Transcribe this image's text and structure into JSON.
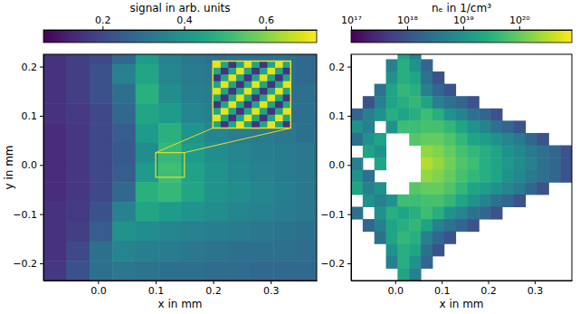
{
  "chart_data": [
    {
      "type": "heatmap",
      "xlabel": "x in mm",
      "ylabel": "y in mm",
      "xlim": [
        -0.095,
        0.38
      ],
      "ylim": [
        -0.235,
        0.225
      ],
      "xticks": [
        {
          "value": 0,
          "label": "0.0"
        },
        0.1,
        0.2,
        0.3
      ],
      "yticks": [
        {
          "value": -0.2,
          "label": "−0.2"
        },
        {
          "value": -0.1,
          "label": "−0.1"
        },
        {
          "value": 0,
          "label": "0.0"
        },
        0.1,
        0.2
      ],
      "colorbar": {
        "label": "signal in arb. units",
        "range": [
          0.055,
          0.725
        ],
        "ticks": [
          0.2,
          0.4,
          0.6
        ]
      },
      "x_edges": [
        -0.095,
        -0.055,
        -0.015,
        0.025,
        0.065,
        0.105,
        0.145,
        0.185,
        0.225,
        0.265,
        0.305,
        0.345,
        0.385
      ],
      "y_edges": [
        0.245,
        0.205,
        0.165,
        0.125,
        0.085,
        0.045,
        0.005,
        -0.035,
        -0.075,
        -0.115,
        -0.155,
        -0.195,
        -0.235
      ],
      "z": [
        [
          0.15,
          0.18,
          0.2,
          0.28,
          0.42,
          0.35,
          0.32,
          0.3,
          0.3,
          0.3,
          0.3,
          0.28
        ],
        [
          0.15,
          0.18,
          0.22,
          0.35,
          0.45,
          0.36,
          0.33,
          0.32,
          0.3,
          0.3,
          0.3,
          0.28
        ],
        [
          0.15,
          0.18,
          0.22,
          0.3,
          0.48,
          0.38,
          0.34,
          0.33,
          0.32,
          0.3,
          0.3,
          0.3
        ],
        [
          0.15,
          0.17,
          0.2,
          0.28,
          0.45,
          0.42,
          0.36,
          0.34,
          0.33,
          0.32,
          0.3,
          0.3
        ],
        [
          0.14,
          0.16,
          0.2,
          0.25,
          0.42,
          0.48,
          0.4,
          0.36,
          0.34,
          0.33,
          0.32,
          0.3
        ],
        [
          0.14,
          0.16,
          0.2,
          0.24,
          0.38,
          0.5,
          0.42,
          0.38,
          0.36,
          0.34,
          0.33,
          0.32
        ],
        [
          0.14,
          0.16,
          0.2,
          0.25,
          0.42,
          0.52,
          0.44,
          0.4,
          0.37,
          0.35,
          0.33,
          0.32
        ],
        [
          0.14,
          0.16,
          0.2,
          0.28,
          0.48,
          0.5,
          0.45,
          0.4,
          0.38,
          0.36,
          0.34,
          0.32
        ],
        [
          0.15,
          0.17,
          0.22,
          0.35,
          0.45,
          0.42,
          0.4,
          0.38,
          0.36,
          0.35,
          0.33,
          0.32
        ],
        [
          0.15,
          0.18,
          0.25,
          0.4,
          0.38,
          0.36,
          0.35,
          0.34,
          0.33,
          0.32,
          0.31,
          0.3
        ],
        [
          0.15,
          0.2,
          0.3,
          0.36,
          0.34,
          0.33,
          0.32,
          0.31,
          0.3,
          0.3,
          0.3,
          0.29
        ],
        [
          0.16,
          0.22,
          0.3,
          0.32,
          0.31,
          0.3,
          0.3,
          0.29,
          0.29,
          0.28,
          0.28,
          0.28
        ]
      ],
      "inset": {
        "x_edges": [
          0.1,
          0.105,
          0.11,
          0.115,
          0.12,
          0.125,
          0.13,
          0.135,
          0.14,
          0.145,
          0.15
        ],
        "y_edges": [
          0.025,
          0.02,
          0.015,
          0.01,
          0.005,
          0,
          -0.005,
          -0.01,
          -0.015,
          -0.02,
          -0.025
        ],
        "z": [
          [
            0.7,
            0.45,
            0.15,
            0.45,
            0.7,
            0.45,
            0.15,
            0.45,
            0.7,
            0.45
          ],
          [
            0.45,
            0.15,
            0.45,
            0.7,
            0.45,
            0.15,
            0.45,
            0.7,
            0.45,
            0.15
          ],
          [
            0.15,
            0.45,
            0.7,
            0.45,
            0.15,
            0.45,
            0.7,
            0.45,
            0.15,
            0.45
          ],
          [
            0.45,
            0.7,
            0.45,
            0.15,
            0.45,
            0.7,
            0.45,
            0.15,
            0.45,
            0.7
          ],
          [
            0.7,
            0.45,
            0.15,
            0.45,
            0.7,
            0.45,
            0.15,
            0.45,
            0.7,
            0.45
          ],
          [
            0.45,
            0.15,
            0.45,
            0.7,
            0.45,
            0.15,
            0.45,
            0.7,
            0.45,
            0.15
          ],
          [
            0.15,
            0.45,
            0.7,
            0.45,
            0.15,
            0.45,
            0.7,
            0.45,
            0.15,
            0.45
          ],
          [
            0.45,
            0.7,
            0.45,
            0.15,
            0.45,
            0.7,
            0.45,
            0.15,
            0.45,
            0.7
          ],
          [
            0.7,
            0.45,
            0.15,
            0.45,
            0.7,
            0.45,
            0.15,
            0.45,
            0.7,
            0.45
          ],
          [
            0.45,
            0.15,
            0.45,
            0.7,
            0.45,
            0.15,
            0.45,
            0.7,
            0.45,
            0.15
          ]
        ]
      }
    },
    {
      "type": "heatmap",
      "xlabel": "x in mm",
      "xlim": [
        -0.095,
        0.38
      ],
      "ylim": [
        -0.235,
        0.225
      ],
      "xticks": [
        {
          "value": 0,
          "label": "0.0"
        },
        0.1,
        0.2,
        0.3
      ],
      "yticks": [
        {
          "value": -0.2,
          "label": "−0.2"
        },
        {
          "value": -0.1,
          "label": "−0.1"
        },
        {
          "value": 0,
          "label": "0.0"
        },
        0.1,
        0.2
      ],
      "colorbar": {
        "label": "nₑ in 1/cm³",
        "range": [
          1e+17,
          8.7e+20
        ],
        "log": true,
        "ticks": [
          {
            "value": 1e+17,
            "label": "10¹⁷"
          },
          {
            "value": 1e+18,
            "label": "10¹⁸"
          },
          {
            "value": 1e+19,
            "label": "10¹⁹"
          },
          {
            "value": 1e+20,
            "label": "10²⁰"
          }
        ]
      },
      "x_edges": [
        -0.095,
        -0.07,
        -0.045,
        -0.02,
        0.005,
        0.03,
        0.055,
        0.08,
        0.105,
        0.13,
        0.155,
        0.18,
        0.205,
        0.23,
        0.255,
        0.28,
        0.305,
        0.33,
        0.355,
        0.38
      ],
      "y_edges": [
        0.24,
        0.215,
        0.19,
        0.165,
        0.14,
        0.115,
        0.09,
        0.065,
        0.04,
        0.015,
        -0.01,
        -0.035,
        -0.06,
        -0.085,
        -0.11,
        -0.135,
        -0.16,
        -0.185,
        -0.21,
        -0.235
      ],
      "z": [
        [
          null,
          null,
          null,
          null,
          2e+19,
          5e+18,
          null,
          null,
          null,
          null,
          null,
          null,
          null,
          null,
          null,
          null,
          null,
          null,
          null
        ],
        [
          null,
          null,
          null,
          5e+18,
          3e+19,
          1e+19,
          2e+18,
          null,
          null,
          null,
          null,
          null,
          null,
          null,
          null,
          null,
          null,
          null,
          null
        ],
        [
          null,
          null,
          null,
          1e+19,
          3e+19,
          2e+19,
          3e+18,
          1e+18,
          null,
          null,
          null,
          null,
          null,
          null,
          null,
          null,
          null,
          null,
          null
        ],
        [
          null,
          null,
          3e+18,
          2e+19,
          4e+19,
          3e+19,
          5e+18,
          2e+18,
          1e+18,
          null,
          null,
          null,
          null,
          null,
          null,
          null,
          null,
          null,
          null
        ],
        [
          null,
          1e+18,
          5e+18,
          2e+19,
          3e+19,
          4e+19,
          2e+19,
          5e+18,
          3e+18,
          2e+18,
          1e+18,
          null,
          null,
          null,
          null,
          null,
          null,
          null,
          null
        ],
        [
          2e+18,
          5e+18,
          1e+19,
          3e+19,
          2e+19,
          3e+19,
          5e+19,
          3e+19,
          1e+19,
          6e+18,
          3e+18,
          2e+18,
          1e+18,
          null,
          null,
          null,
          null,
          null,
          null
        ],
        [
          1e+19,
          5e+18,
          null,
          1e+19,
          5e+19,
          5e+19,
          6e+19,
          6e+19,
          4e+19,
          2e+19,
          1e+19,
          6e+18,
          3e+18,
          2e+18,
          1e+18,
          null,
          null,
          null,
          null
        ],
        [
          3e+18,
          1e+19,
          2e+19,
          null,
          null,
          8e+19,
          1e+20,
          1e+20,
          7e+19,
          4e+19,
          2e+19,
          1.5e+19,
          1e+19,
          6e+18,
          4e+18,
          2e+18,
          1e+18,
          null,
          null
        ],
        [
          null,
          2e+19,
          1e+19,
          null,
          null,
          null,
          2e+20,
          1.5e+20,
          1e+20,
          6e+19,
          4e+19,
          3e+19,
          2e+19,
          1e+19,
          7e+18,
          4e+18,
          3e+18,
          2e+18,
          1e+18
        ],
        [
          5e+18,
          null,
          2e+19,
          null,
          null,
          null,
          3e+20,
          2e+20,
          1.2e+20,
          7e+19,
          5e+19,
          3e+19,
          2e+19,
          1.2e+19,
          8e+18,
          5e+18,
          3e+18,
          2e+18,
          1e+18
        ],
        [
          1e+19,
          3e+18,
          null,
          null,
          null,
          null,
          2e+20,
          1.5e+20,
          1e+20,
          6e+19,
          4e+19,
          3e+19,
          2e+19,
          1e+19,
          7e+18,
          4e+18,
          3e+18,
          2e+18,
          1e+18
        ],
        [
          2e+19,
          5e+18,
          1e+19,
          null,
          null,
          8e+19,
          1e+20,
          1e+20,
          7e+19,
          4e+19,
          2e+19,
          1.5e+19,
          1e+19,
          6e+18,
          4e+18,
          2e+18,
          1e+18,
          null,
          null
        ],
        [
          null,
          1e+19,
          5e+18,
          1e+19,
          5e+19,
          5e+19,
          6e+19,
          6e+19,
          4e+19,
          2e+19,
          1e+19,
          6e+18,
          3e+18,
          2e+18,
          1e+18,
          null,
          null,
          null,
          null
        ],
        [
          3e+18,
          null,
          1e+19,
          3e+19,
          2e+19,
          3e+19,
          5e+19,
          3e+19,
          1e+19,
          6e+18,
          3e+18,
          2e+18,
          1e+18,
          null,
          null,
          null,
          null,
          null,
          null
        ],
        [
          null,
          2e+18,
          5e+18,
          2e+19,
          3e+19,
          4e+19,
          2e+19,
          5e+18,
          3e+18,
          2e+18,
          1e+18,
          null,
          null,
          null,
          null,
          null,
          null,
          null,
          null
        ],
        [
          null,
          null,
          3e+18,
          2e+19,
          4e+19,
          3e+19,
          5e+18,
          2e+18,
          1e+18,
          null,
          null,
          null,
          null,
          null,
          null,
          null,
          null,
          null,
          null
        ],
        [
          null,
          null,
          null,
          1e+19,
          3e+19,
          2e+19,
          3e+18,
          1e+18,
          null,
          null,
          null,
          null,
          null,
          null,
          null,
          null,
          null,
          null,
          null
        ],
        [
          null,
          null,
          null,
          5e+18,
          3e+19,
          1e+19,
          2e+18,
          null,
          null,
          null,
          null,
          null,
          null,
          null,
          null,
          null,
          null,
          null,
          null
        ],
        [
          null,
          null,
          null,
          null,
          2e+19,
          5e+18,
          null,
          null,
          null,
          null,
          null,
          null,
          null,
          null,
          null,
          null,
          null,
          null,
          null
        ]
      ]
    }
  ]
}
